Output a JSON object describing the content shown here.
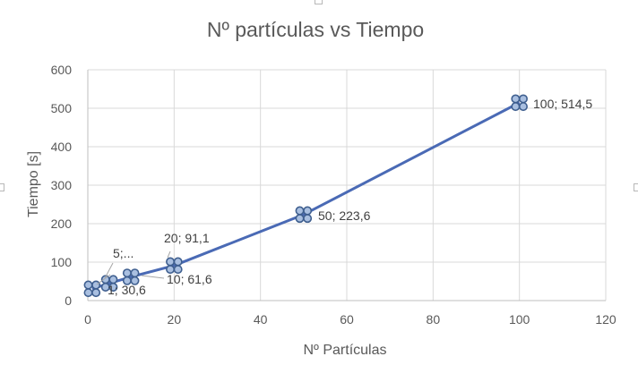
{
  "chart_data": {
    "type": "line",
    "title": "Nº partículas vs Tiempo",
    "xlabel": "Nº Partículas",
    "ylabel": "Tiempo [s]",
    "xlim": [
      0,
      120
    ],
    "ylim": [
      0,
      600
    ],
    "xticks": [
      "0",
      "20",
      "40",
      "60",
      "80",
      "100",
      "120"
    ],
    "yticks": [
      "0",
      "100",
      "200",
      "300",
      "400",
      "500",
      "600"
    ],
    "grid": true,
    "legend": "none",
    "series": [
      {
        "x": [
          1,
          5,
          10,
          20,
          50,
          100
        ],
        "y": [
          30.6,
          45,
          61.6,
          91.1,
          223.6,
          514.5
        ],
        "color": "#4a6ab5",
        "marker_fill": "#a9bfe0",
        "marker_edge": "#3f5f8f"
      }
    ],
    "data_labels": [
      "1; 30,6",
      "5;...",
      "10; 61,6",
      "20; 91,1",
      "50; 223,6",
      "100; 514,5"
    ]
  }
}
